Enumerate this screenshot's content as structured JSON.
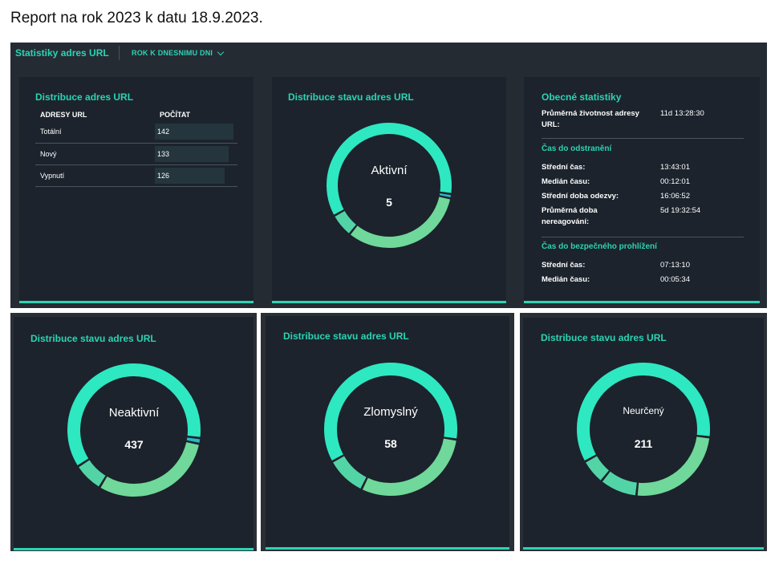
{
  "report_title": "Report na rok 2023 k datu 18.9.2023.",
  "header": {
    "title": "Statistiky adres URL",
    "filter_label": "ROK K DNESNIMU DNI"
  },
  "url_distribution": {
    "title": "Distribuce adres URL",
    "col_url": "ADRESY URL",
    "col_count": "POČÍTAT",
    "rows": [
      {
        "label": "Totální",
        "count": "142",
        "fraction": 1.0
      },
      {
        "label": "Nový",
        "count": "133",
        "fraction": 0.94
      },
      {
        "label": "Vypnutí",
        "count": "126",
        "fraction": 0.89
      }
    ]
  },
  "general_stats": {
    "title": "Obecné statistiky",
    "lifetime_label": "Průměrná životnost adresy URL:",
    "lifetime_value": "11d 13:28:30",
    "removal_title": "Čas do odstranění",
    "removal": [
      {
        "label": "Střední čas:",
        "value": "13:43:01"
      },
      {
        "label": "Medián času:",
        "value": "00:12:01"
      },
      {
        "label": "Střední doba odezvy:",
        "value": "16:06:52"
      },
      {
        "label": "Průměrná doba nereagování:",
        "value": "5d 19:32:54"
      }
    ],
    "safe_title": "Čas do bezpečného prohlížení",
    "safe": [
      {
        "label": "Střední čas:",
        "value": "07:13:10"
      },
      {
        "label": "Medián času:",
        "value": "00:05:34"
      }
    ]
  },
  "colors": {
    "accent": "#2bd4b4",
    "ring_main": "#2ee8c2",
    "ring_secondary": "#6fd89a",
    "panel_bg": "#1c232c"
  },
  "status_charts": [
    {
      "title": "Distribuce stavu adres URL",
      "label": "Aktivní",
      "value": "5",
      "segments": [
        {
          "from": 0,
          "to": 97,
          "color": "#2ee8c2"
        },
        {
          "from": 99,
          "to": 101,
          "color": "#2bb8c8"
        },
        {
          "from": 103,
          "to": 218,
          "color": "#6fd89a"
        },
        {
          "from": 220,
          "to": 240,
          "color": "#52d4a6"
        },
        {
          "from": 242,
          "to": 360,
          "color": "#2ee8c2"
        }
      ]
    },
    {
      "title": "Distribuce stavu adres URL",
      "label": "Neaktivní",
      "value": "437",
      "segments": [
        {
          "from": 0,
          "to": 96,
          "color": "#2ee8c2"
        },
        {
          "from": 98,
          "to": 101,
          "color": "#2bb8c8"
        },
        {
          "from": 103,
          "to": 210,
          "color": "#6fd89a"
        },
        {
          "from": 212,
          "to": 236,
          "color": "#52d4a6"
        },
        {
          "from": 238,
          "to": 360,
          "color": "#2ee8c2"
        }
      ]
    },
    {
      "title": "Distribuce stavu adres URL",
      "label": "Zlomyslný",
      "value": "58",
      "segments": [
        {
          "from": 0,
          "to": 98,
          "color": "#2ee8c2"
        },
        {
          "from": 100,
          "to": 205,
          "color": "#6fd89a"
        },
        {
          "from": 207,
          "to": 240,
          "color": "#52d4a6"
        },
        {
          "from": 242,
          "to": 360,
          "color": "#2ee8c2"
        }
      ]
    },
    {
      "title": "Distribuce stavu adres URL",
      "label": "Neurčený",
      "value": "211",
      "segments": [
        {
          "from": 0,
          "to": 96,
          "color": "#2ee8c2"
        },
        {
          "from": 98,
          "to": 185,
          "color": "#6fd89a"
        },
        {
          "from": 187,
          "to": 218,
          "color": "#52d4a6"
        },
        {
          "from": 220,
          "to": 240,
          "color": "#52d4a6"
        },
        {
          "from": 242,
          "to": 360,
          "color": "#2ee8c2"
        }
      ]
    }
  ]
}
